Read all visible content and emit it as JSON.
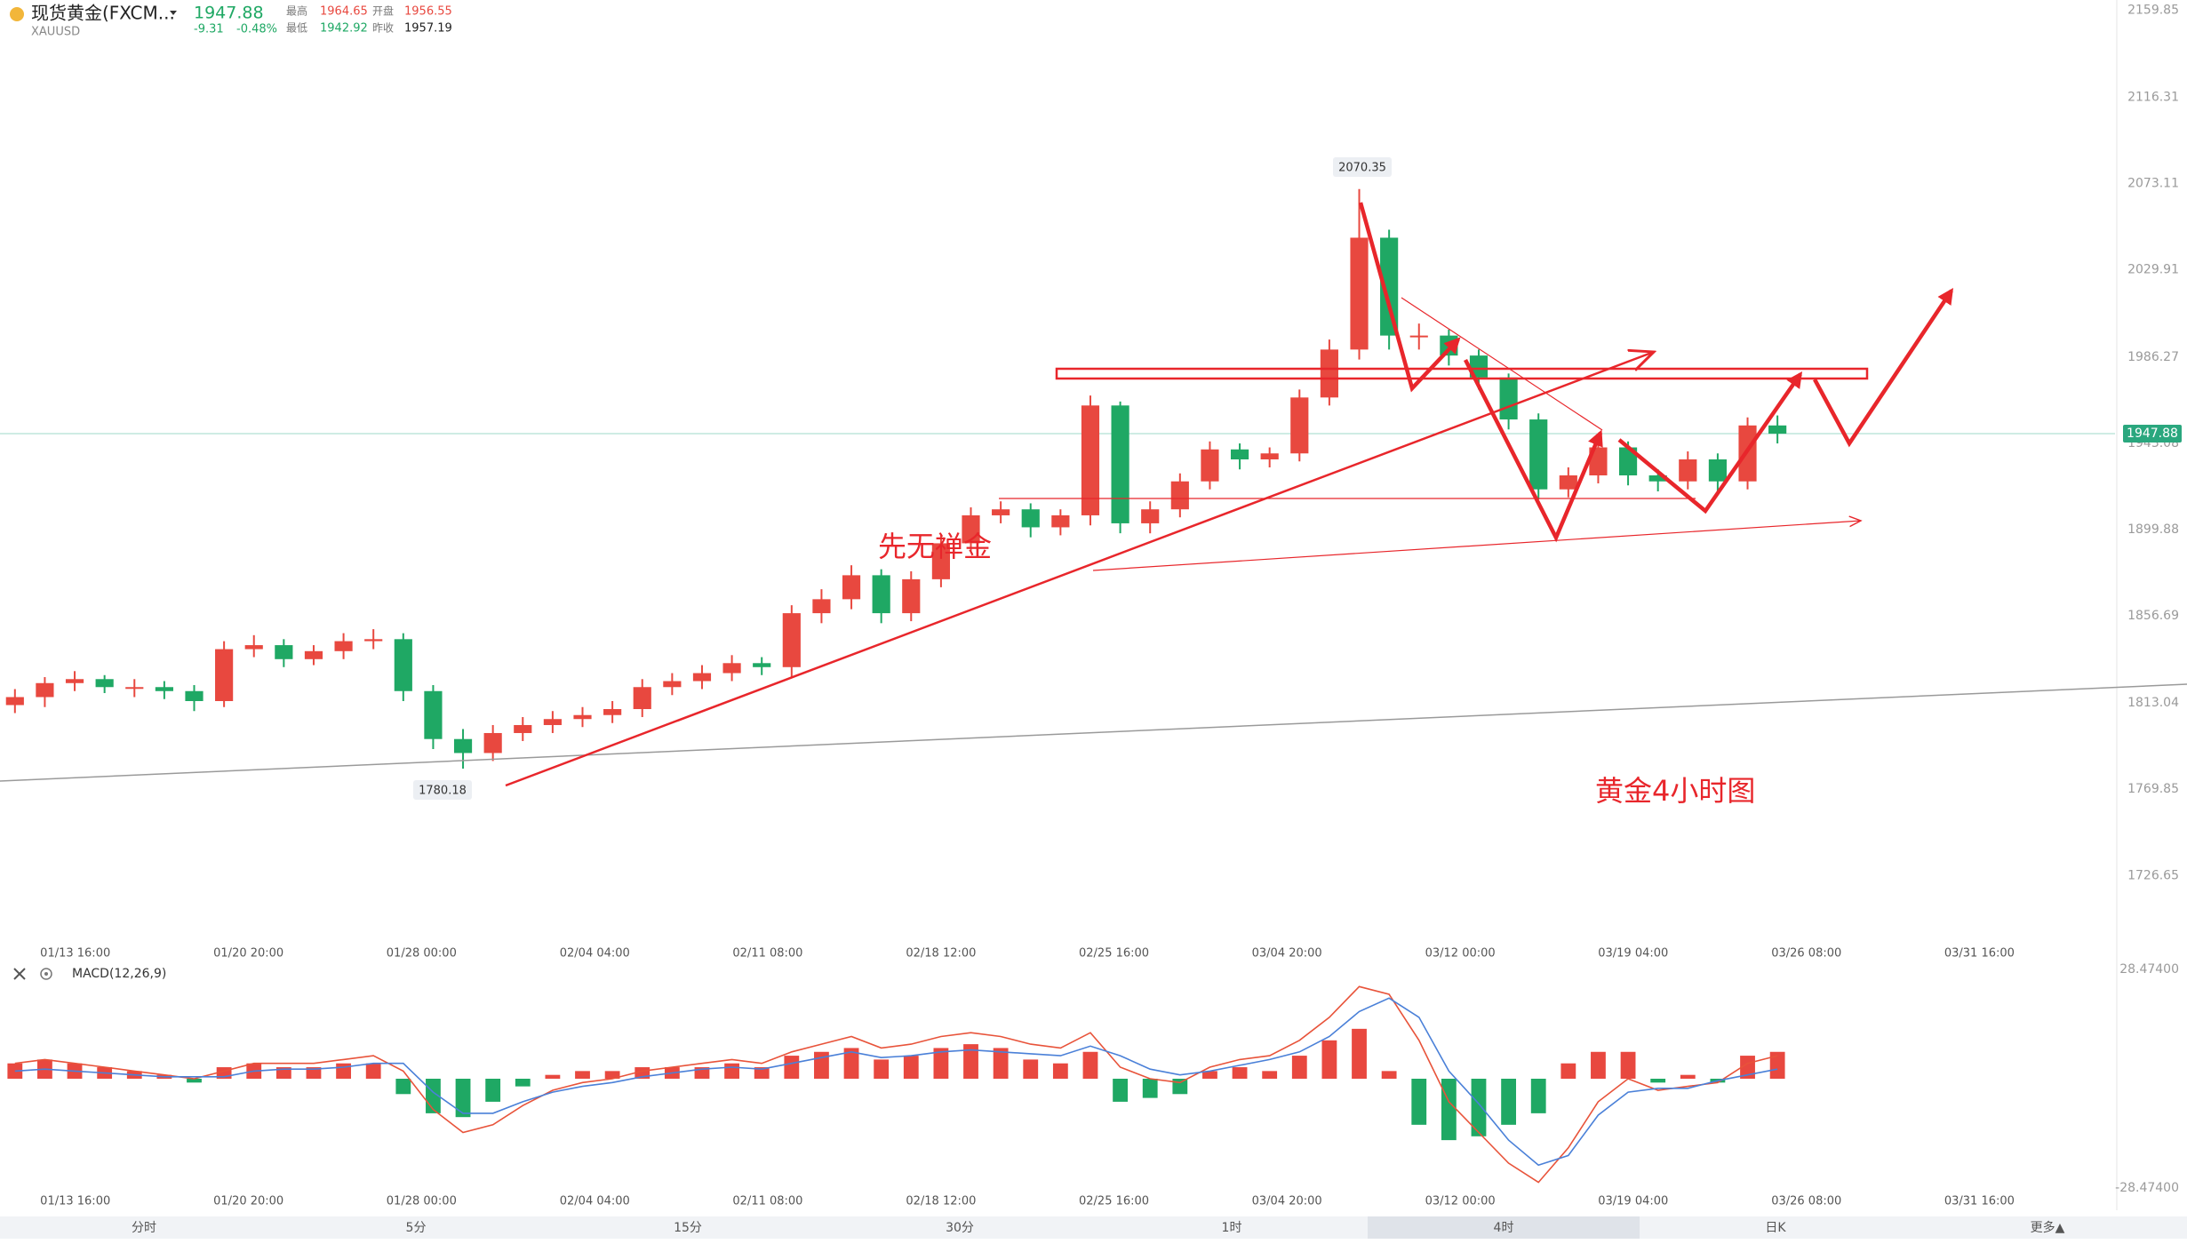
{
  "quote": {
    "title": "现货黄金(FXCM...",
    "symbol": "XAUUSD",
    "change": "-9.31",
    "change_pct": "-0.48%",
    "stats": [
      {
        "label": "最高",
        "value": "1964.65"
      },
      {
        "label": "开盘",
        "value": "1956.55"
      },
      {
        "label": "最低",
        "value": "1942.92"
      },
      {
        "label": "昨收",
        "value": "1957.19"
      }
    ]
  },
  "chart_data": {
    "type": "candlestick",
    "last": 1947.88,
    "up_color": "#e8483f",
    "down_color": "#1fa864",
    "last_color": "#2aa77e",
    "ylim": [
      1697,
      2165
    ],
    "yticks": [
      2159.85,
      2116.31,
      2073.11,
      2029.91,
      1986.27,
      1943.08,
      1899.88,
      1856.69,
      1813.04,
      1769.85,
      1726.65
    ],
    "xlim": [
      -0.5,
      70.3
    ],
    "xticks": [
      {
        "value": 2.02,
        "label": "01/13 16:00"
      },
      {
        "value": 7.82,
        "label": "01/20 20:00"
      },
      {
        "value": 13.61,
        "label": "01/28 00:00"
      },
      {
        "value": 19.41,
        "label": "02/04 04:00"
      },
      {
        "value": 25.2,
        "label": "02/11 08:00"
      },
      {
        "value": 31,
        "label": "02/18 12:00"
      },
      {
        "value": 36.79,
        "label": "02/25 16:00"
      },
      {
        "value": 42.58,
        "label": "03/04 20:00"
      },
      {
        "value": 48.38,
        "label": "03/12 00:00"
      },
      {
        "value": 54.17,
        "label": "03/19 04:00"
      },
      {
        "value": 59.97,
        "label": "03/26 08:00"
      },
      {
        "value": 65.76,
        "label": "03/31 16:00"
      }
    ],
    "open": [
      1812,
      1816,
      1823,
      1825,
      1821,
      1821,
      1819,
      1814,
      1840,
      1842,
      1835,
      1839,
      1844,
      1845,
      1819,
      1795,
      1788,
      1798,
      1802,
      1805,
      1807,
      1810,
      1821,
      1824,
      1828,
      1833,
      1831,
      1858,
      1865,
      1877,
      1858,
      1875,
      1893,
      1907,
      1910,
      1901,
      1907,
      1962,
      1903,
      1910,
      1924,
      1940,
      1935,
      1938,
      1966,
      1990,
      2046,
      1997,
      1997,
      1987,
      1976,
      1955,
      1920,
      1927,
      1941,
      1927,
      1924,
      1935,
      1924,
      1952
    ],
    "high": [
      1820,
      1826,
      1829,
      1827,
      1825,
      1824,
      1822,
      1844,
      1847,
      1845,
      1842,
      1848,
      1850,
      1848,
      1822,
      1800,
      1802,
      1806,
      1809,
      1811,
      1814,
      1825,
      1828,
      1832,
      1837,
      1836,
      1862,
      1870,
      1882,
      1880,
      1879,
      1897,
      1911,
      1914,
      1913,
      1910,
      1967,
      1964,
      1914,
      1928,
      1944,
      1943,
      1941,
      1970,
      1995,
      2070.35,
      2050,
      2003,
      2000,
      1990,
      1978,
      1958,
      1931,
      1945,
      1944,
      1930,
      1939,
      1938,
      1956,
      1957
    ],
    "low": [
      1808,
      1811,
      1819,
      1818,
      1816,
      1815,
      1809,
      1811,
      1836,
      1831,
      1832,
      1835,
      1840,
      1814,
      1790,
      1780.18,
      1784,
      1794,
      1798,
      1801,
      1803,
      1806,
      1817,
      1820,
      1824,
      1827,
      1826,
      1853,
      1860,
      1853,
      1854,
      1871,
      1889,
      1903,
      1896,
      1897,
      1902,
      1898,
      1898,
      1906,
      1920,
      1930,
      1931,
      1934,
      1962,
      1985,
      1990,
      1990,
      1982,
      1970,
      1950,
      1915,
      1916,
      1923,
      1922,
      1919,
      1920,
      1919,
      1920,
      1943
    ],
    "close": [
      1816,
      1823,
      1825,
      1821,
      1821,
      1819,
      1814,
      1840,
      1842,
      1835,
      1839,
      1844,
      1845,
      1819,
      1795,
      1788,
      1798,
      1802,
      1805,
      1807,
      1810,
      1821,
      1824,
      1828,
      1833,
      1831,
      1858,
      1865,
      1877,
      1858,
      1875,
      1893,
      1907,
      1910,
      1901,
      1907,
      1962,
      1903,
      1910,
      1924,
      1940,
      1935,
      1938,
      1966,
      1990,
      2046,
      1997,
      1997,
      1987,
      1976,
      1955,
      1920,
      1927,
      1941,
      1927,
      1924,
      1935,
      1924,
      1952,
      1947.88
    ],
    "annotations": {
      "high": "2070.35",
      "low": "1780.18",
      "note": "先无禅金",
      "caption": "黄金4小时图"
    },
    "macd": {
      "label": "MACD(12,26,9)",
      "dif_color": "#e8533a",
      "dea_color": "#4a80d8",
      "ylim": [
        -28.474,
        28.474
      ],
      "yticks": [
        {
          "value": 28.474,
          "label": "28.47400"
        },
        {
          "value": -28.474,
          "label": "-28.47400"
        }
      ],
      "histogram": [
        4,
        5,
        4,
        3,
        2,
        1,
        -1,
        3,
        4,
        3,
        3,
        4,
        4,
        -4,
        -9,
        -10,
        -6,
        -2,
        1,
        2,
        2,
        3,
        3,
        3,
        4,
        3,
        6,
        7,
        8,
        5,
        6,
        8,
        9,
        8,
        5,
        4,
        7,
        -6,
        -5,
        -4,
        2,
        3,
        2,
        6,
        10,
        13,
        2,
        -12,
        -16,
        -15,
        -12,
        -9,
        4,
        7,
        7,
        -1,
        1,
        -1,
        6,
        7
      ],
      "dif": [
        4,
        5,
        4,
        3,
        2,
        1,
        0,
        2,
        4,
        4,
        4,
        5,
        6,
        2,
        -8,
        -14,
        -12,
        -7,
        -3,
        -1,
        0,
        2,
        3,
        4,
        5,
        4,
        7,
        9,
        11,
        8,
        9,
        11,
        12,
        11,
        9,
        8,
        12,
        3,
        0,
        -1,
        3,
        5,
        6,
        10,
        16,
        24,
        22,
        10,
        -6,
        -14,
        -22,
        -27,
        -18,
        -6,
        0,
        -3,
        -2,
        -1,
        4,
        6
      ],
      "dea": [
        2,
        2.5,
        2,
        1.5,
        1,
        0.5,
        0.5,
        0.5,
        2,
        2.5,
        2.5,
        3,
        4,
        4,
        -3.5,
        -9,
        -9,
        -6,
        -3.5,
        -2,
        -1,
        0.5,
        1.5,
        2.5,
        3,
        2.5,
        4,
        5.5,
        7,
        5.5,
        6,
        7,
        7.5,
        7,
        6.5,
        6,
        8.5,
        6,
        2.5,
        1,
        2,
        3.5,
        5,
        7,
        11,
        17.5,
        21,
        16,
        2,
        -6.5,
        -16,
        -22.5,
        -20,
        -9.5,
        -3.5,
        -2.5,
        -2.5,
        -0.5,
        1,
        2.5
      ]
    }
  },
  "tabs": [
    "分时",
    "5分",
    "15分",
    "30分",
    "1时",
    "4时",
    "日K",
    "更多▲"
  ],
  "active_tab": "4时"
}
